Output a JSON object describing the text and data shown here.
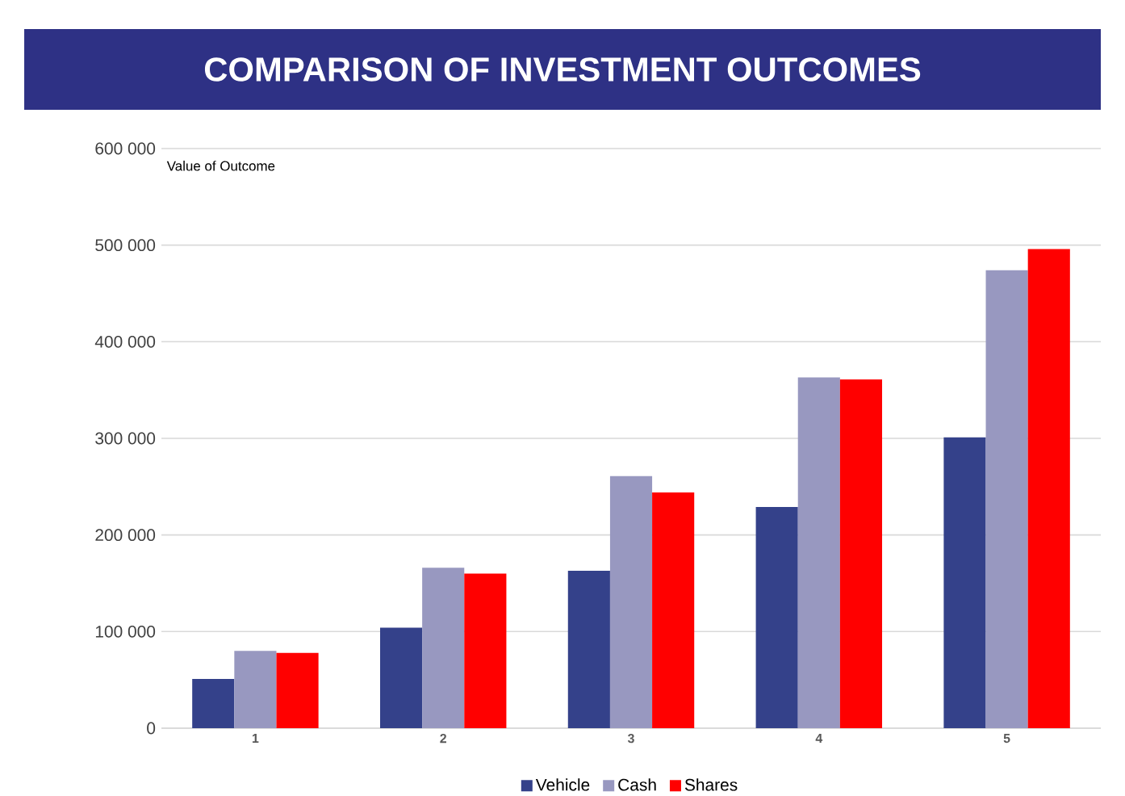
{
  "chart_data": {
    "type": "bar",
    "title": "COMPARISON OF INVESTMENT OUTCOMES",
    "ylabel": "Value of Outcome",
    "categories": [
      "1",
      "2",
      "3",
      "4",
      "5"
    ],
    "series": [
      {
        "name": "Vehicle",
        "color": "#34418a",
        "values": [
          51000,
          104000,
          163000,
          229000,
          301000
        ]
      },
      {
        "name": "Cash",
        "color": "#9898c0",
        "values": [
          80000,
          166000,
          261000,
          363000,
          474000
        ]
      },
      {
        "name": "Shares",
        "color": "#ff0000",
        "values": [
          78000,
          160000,
          244000,
          361000,
          496000
        ]
      }
    ],
    "ylim": [
      0,
      600000
    ],
    "yticks": [
      {
        "value": 0,
        "label": "0"
      },
      {
        "value": 100000,
        "label": "100 000"
      },
      {
        "value": 200000,
        "label": "200 000"
      },
      {
        "value": 300000,
        "label": "300 000"
      },
      {
        "value": 400000,
        "label": "400 000"
      },
      {
        "value": 500000,
        "label": "500 000"
      },
      {
        "value": 600000,
        "label": "600 000"
      }
    ],
    "grid": "y",
    "legend": "bottom"
  }
}
